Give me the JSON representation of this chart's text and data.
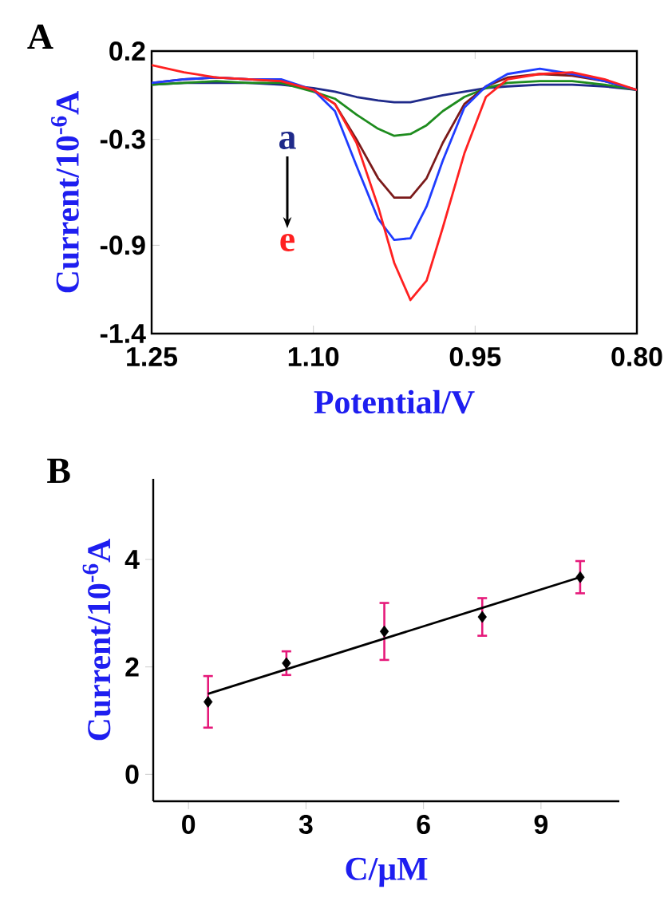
{
  "chart_data": [
    {
      "type": "line",
      "title": "A",
      "xlabel": "Potential/V",
      "ylabel": "Current/10$^{-6}$A",
      "annotations": [
        "a",
        "e"
      ],
      "x": [
        1.25,
        1.22,
        1.19,
        1.16,
        1.13,
        1.1,
        1.08,
        1.06,
        1.04,
        1.025,
        1.01,
        0.995,
        0.98,
        0.96,
        0.94,
        0.92,
        0.89,
        0.86,
        0.83,
        0.8
      ],
      "series": [
        {
          "color": "#1f2a8a",
          "values": [
            0.01,
            0.02,
            0.02,
            0.02,
            0.01,
            -0.01,
            -0.03,
            -0.06,
            -0.08,
            -0.09,
            -0.09,
            -0.07,
            -0.05,
            -0.03,
            -0.01,
            0.0,
            0.01,
            0.01,
            0.0,
            -0.02
          ]
        },
        {
          "color": "#1e8c1e",
          "values": [
            0.01,
            0.02,
            0.03,
            0.02,
            0.02,
            -0.03,
            -0.07,
            -0.16,
            -0.24,
            -0.28,
            -0.27,
            -0.22,
            -0.14,
            -0.06,
            -0.01,
            0.02,
            0.03,
            0.03,
            0.01,
            -0.02
          ]
        },
        {
          "color": "#7b1a1a",
          "values": [
            0.02,
            0.04,
            0.05,
            0.04,
            0.03,
            -0.02,
            -0.1,
            -0.3,
            -0.52,
            -0.63,
            -0.63,
            -0.52,
            -0.32,
            -0.1,
            0.0,
            0.05,
            0.07,
            0.06,
            0.03,
            -0.02
          ]
        },
        {
          "color": "#1f3cff",
          "values": [
            0.02,
            0.04,
            0.05,
            0.04,
            0.04,
            -0.02,
            -0.14,
            -0.45,
            -0.75,
            -0.87,
            -0.86,
            -0.68,
            -0.42,
            -0.12,
            0.0,
            0.07,
            0.1,
            0.07,
            0.03,
            -0.02
          ]
        },
        {
          "color": "#ff2020",
          "values": [
            0.12,
            0.08,
            0.05,
            0.04,
            0.03,
            -0.02,
            -0.1,
            -0.32,
            -0.68,
            -1.0,
            -1.21,
            -1.1,
            -0.8,
            -0.38,
            -0.06,
            0.04,
            0.07,
            0.08,
            0.04,
            -0.02
          ]
        }
      ],
      "xlim": [
        1.25,
        0.8
      ],
      "xticks": [
        1.25,
        {
          "value": 1.1,
          "label": "1.10"
        },
        0.95,
        {
          "value": 0.8,
          "label": "0.80"
        }
      ],
      "ylim": [
        -1.4,
        0.2
      ],
      "yticks": [
        0.2,
        -0.3,
        -0.9,
        -1.4
      ],
      "grid": false,
      "line_style": "solid"
    },
    {
      "type": "scatter",
      "title": "B",
      "xlabel": "C/μM",
      "ylabel": "Current/10$^{-6}$A",
      "series": [
        {
          "color": "#000000",
          "marker": "diamond",
          "x": [
            0.5,
            2.5,
            5,
            7.5,
            10
          ],
          "values": [
            1.35,
            2.07,
            2.66,
            2.93,
            3.67
          ],
          "errors": [
            0.48,
            0.22,
            0.53,
            0.35,
            0.3
          ]
        },
        {
          "type": "line",
          "color": "#000000",
          "marker": "none",
          "x": [
            0.5,
            10
          ],
          "values": [
            1.5,
            3.67
          ]
        }
      ],
      "xlim": [
        -0.9,
        11
      ],
      "xticks": [
        0,
        3,
        6,
        9
      ],
      "ylim": [
        -0.5,
        5.5
      ],
      "yticks": [
        0,
        2,
        4
      ],
      "grid": false
    }
  ]
}
